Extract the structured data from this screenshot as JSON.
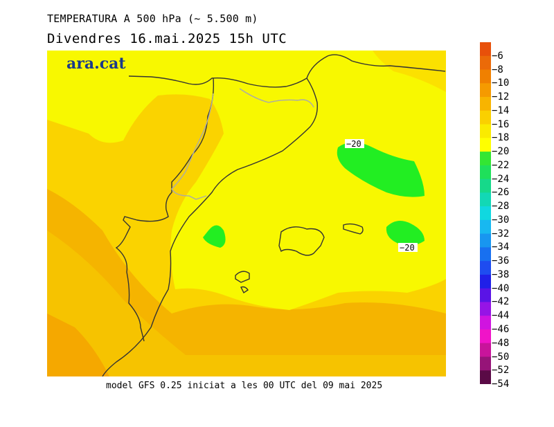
{
  "header": {
    "title": "TEMPERATURA A 500 hPa (~ 5.500 m)",
    "subtitle": "Divendres  16.mai.2025 15h UTC"
  },
  "footer": {
    "text": "model GFS 0.25 iniciat a les 00 UTC del 09 mai 2025"
  },
  "logo": {
    "text": "ara.cat",
    "color": "#1a3a8a"
  },
  "contour_labels": [
    "−20",
    "−20"
  ],
  "legend": {
    "labels": [
      "−6",
      "−8",
      "−10",
      "−12",
      "−14",
      "−16",
      "−18",
      "−20",
      "−22",
      "−24",
      "−26",
      "−28",
      "−30",
      "−32",
      "−34",
      "−36",
      "−38",
      "−40",
      "−42",
      "−44",
      "−46",
      "−48",
      "−50",
      "−52",
      "−54"
    ],
    "colors": [
      "#e8500a",
      "#eb6a08",
      "#f08000",
      "#f59a00",
      "#f8b400",
      "#fad000",
      "#faeb00",
      "#ffff00",
      "#33e633",
      "#1fe05a",
      "#16d98a",
      "#12d8b5",
      "#10d8e0",
      "#18b8f0",
      "#1896f0",
      "#1870f0",
      "#1e4cf0",
      "#2020e8",
      "#5a14e6",
      "#9614e6",
      "#d014e0",
      "#f014c8",
      "#c8149b",
      "#961478",
      "#5a0a46"
    ]
  },
  "map_colors": {
    "warm": "#f5b400",
    "orange": "#f6c300",
    "light": "#fad300",
    "yellow": "#f8f800",
    "green": "#22ee22"
  }
}
